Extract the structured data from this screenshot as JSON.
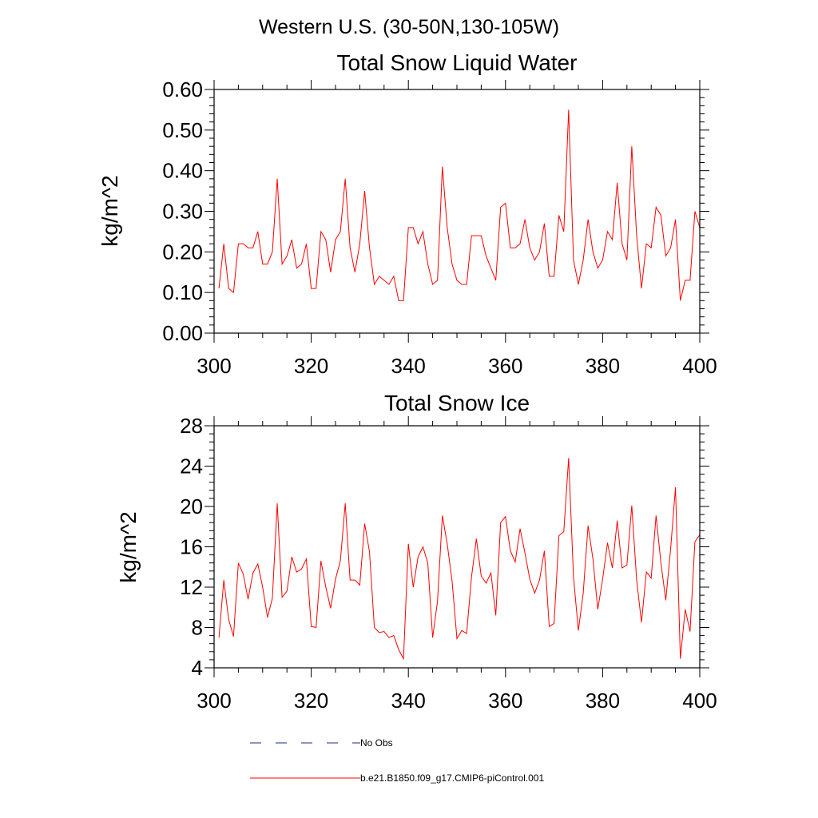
{
  "figure": {
    "title": "Western U.S. (30-50N,130-105W)"
  },
  "colors": {
    "model_line": "#ff0000",
    "obs_line": "#1a2a8c",
    "axis": "#000000"
  },
  "chart_data": [
    {
      "type": "line",
      "title": "Total Snow Liquid Water",
      "xlabel": "",
      "ylabel": "kg/m^2",
      "xlim": [
        300,
        400
      ],
      "ylim": [
        0.0,
        0.6
      ],
      "xticks": [
        "300",
        "320",
        "340",
        "360",
        "380",
        "400"
      ],
      "xtick_values": [
        300,
        320,
        340,
        360,
        380,
        400
      ],
      "yticks": [
        "0.00",
        "0.10",
        "0.20",
        "0.30",
        "0.40",
        "0.50",
        "0.60"
      ],
      "ytick_values": [
        0.0,
        0.1,
        0.2,
        0.3,
        0.4,
        0.5,
        0.6
      ],
      "grid": false,
      "series": [
        {
          "name": "b.e21.B1850.f09_g17.CMIP6-piControl.001",
          "x_start": 301,
          "x_step": 1,
          "values": [
            0.11,
            0.22,
            0.11,
            0.1,
            0.22,
            0.22,
            0.21,
            0.21,
            0.25,
            0.17,
            0.17,
            0.2,
            0.38,
            0.17,
            0.19,
            0.23,
            0.16,
            0.17,
            0.22,
            0.11,
            0.11,
            0.25,
            0.23,
            0.15,
            0.23,
            0.25,
            0.38,
            0.21,
            0.15,
            0.22,
            0.35,
            0.21,
            0.12,
            0.14,
            0.13,
            0.12,
            0.14,
            0.08,
            0.08,
            0.26,
            0.26,
            0.22,
            0.25,
            0.17,
            0.12,
            0.13,
            0.41,
            0.26,
            0.17,
            0.13,
            0.12,
            0.12,
            0.24,
            0.24,
            0.24,
            0.19,
            0.16,
            0.13,
            0.31,
            0.32,
            0.21,
            0.21,
            0.22,
            0.28,
            0.21,
            0.18,
            0.2,
            0.27,
            0.14,
            0.14,
            0.29,
            0.25,
            0.55,
            0.18,
            0.12,
            0.18,
            0.28,
            0.2,
            0.16,
            0.18,
            0.25,
            0.23,
            0.37,
            0.22,
            0.18,
            0.46,
            0.24,
            0.11,
            0.22,
            0.21,
            0.31,
            0.29,
            0.19,
            0.21,
            0.28,
            0.08,
            0.13,
            0.13,
            0.3,
            0.26
          ]
        }
      ]
    },
    {
      "type": "line",
      "title": "Total Snow Ice",
      "xlabel": "",
      "ylabel": "kg/m^2",
      "xlim": [
        300,
        400
      ],
      "ylim": [
        4,
        28
      ],
      "xticks": [
        "300",
        "320",
        "340",
        "360",
        "380",
        "400"
      ],
      "xtick_values": [
        300,
        320,
        340,
        360,
        380,
        400
      ],
      "yticks": [
        "4",
        "8",
        "12",
        "16",
        "20",
        "24",
        "28"
      ],
      "ytick_values": [
        4,
        8,
        12,
        16,
        20,
        24,
        28
      ],
      "grid": false,
      "series": [
        {
          "name": "b.e21.B1850.f09_g17.CMIP6-piControl.001",
          "x_start": 301,
          "x_step": 1,
          "values": [
            7.0,
            12.7,
            8.8,
            7.1,
            14.4,
            13.3,
            10.8,
            13.4,
            14.3,
            12.0,
            9.0,
            10.9,
            20.3,
            11.0,
            11.6,
            15.0,
            13.5,
            13.8,
            14.8,
            8.1,
            8.0,
            14.6,
            12.0,
            9.9,
            12.8,
            14.6,
            20.3,
            12.7,
            12.7,
            12.2,
            18.3,
            15.5,
            8.0,
            7.5,
            7.6,
            7.0,
            7.2,
            5.8,
            4.9,
            16.3,
            12.0,
            15.0,
            16.0,
            14.4,
            7.0,
            10.6,
            19.1,
            16.3,
            12.6,
            6.9,
            7.7,
            7.4,
            13.0,
            16.8,
            13.1,
            12.4,
            13.4,
            9.2,
            18.4,
            19.0,
            15.6,
            14.5,
            17.8,
            15.4,
            12.8,
            11.4,
            12.7,
            15.6,
            8.1,
            8.4,
            17.1,
            17.5,
            24.8,
            13.0,
            7.7,
            11.4,
            18.1,
            14.8,
            9.8,
            12.8,
            16.4,
            13.9,
            18.6,
            13.9,
            14.2,
            20.1,
            12.7,
            8.5,
            13.5,
            12.9,
            19.1,
            14.4,
            10.7,
            15.8,
            21.9,
            4.9,
            9.8,
            7.6,
            16.5,
            17.2
          ]
        }
      ]
    }
  ],
  "legend": {
    "placement": "bottom-center",
    "entries": [
      {
        "label": "No Obs",
        "style": "dashed"
      },
      {
        "label": "b.e21.B1850.f09_g17.CMIP6-piControl.001",
        "style": "solid"
      }
    ]
  }
}
